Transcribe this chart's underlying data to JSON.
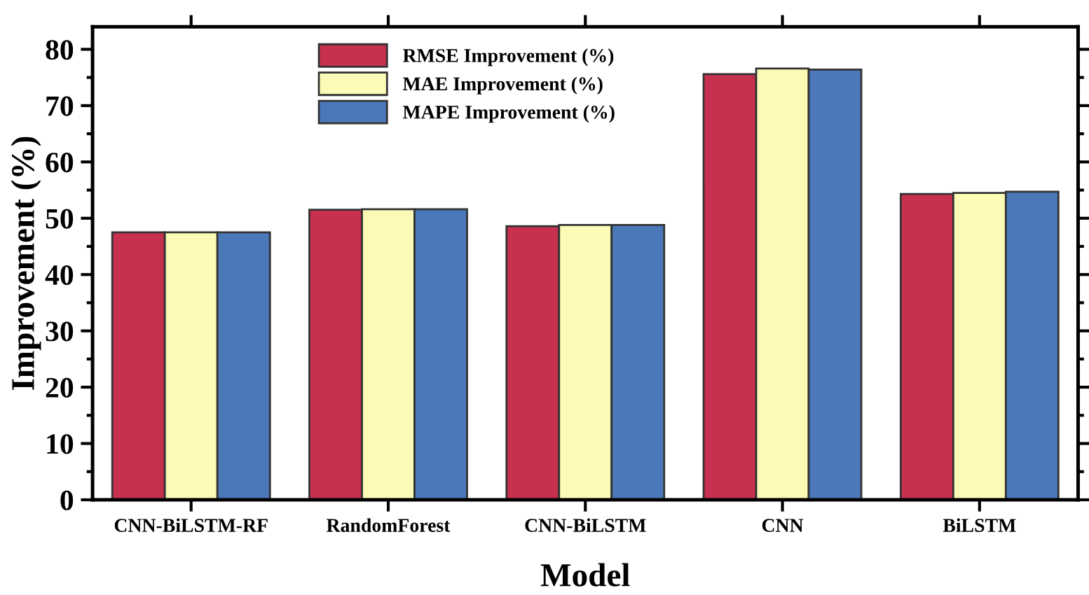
{
  "chart_data": {
    "type": "bar",
    "xlabel": "Model",
    "ylabel": "Improvement (%)",
    "categories": [
      "CNN-BiLSTM-RF",
      "RandomForest",
      "CNN-BiLSTM",
      "CNN",
      "BiLSTM"
    ],
    "series": [
      {
        "name": "RMSE Improvement (%)",
        "color": "#c8304f",
        "values": [
          47.5,
          51.5,
          48.6,
          75.6,
          54.3
        ]
      },
      {
        "name": "MAE Improvement (%)",
        "color": "#fbfbb5",
        "values": [
          47.5,
          51.6,
          48.8,
          76.6,
          54.5
        ]
      },
      {
        "name": "MAPE Improvement (%)",
        "color": "#4a78b8",
        "values": [
          47.5,
          51.6,
          48.8,
          76.4,
          54.7
        ]
      }
    ],
    "ylim": [
      0,
      84
    ],
    "yticks": [
      0,
      10,
      20,
      30,
      40,
      50,
      60,
      70,
      80
    ],
    "grid": false,
    "legend": "top"
  }
}
